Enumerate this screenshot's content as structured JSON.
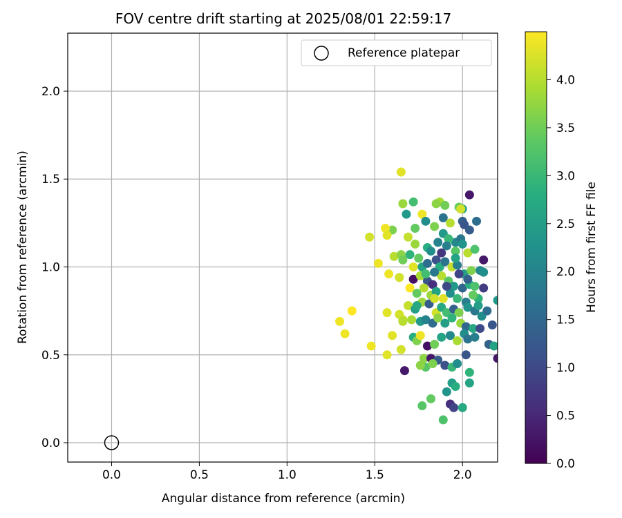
{
  "chart_data": {
    "type": "scatter",
    "title": "FOV centre drift starting at 2025/08/01 22:59:17",
    "xlabel": "Angular distance from reference (arcmin)",
    "ylabel": "Rotation from reference (arcmin)",
    "xlim": [
      -0.25,
      2.2
    ],
    "ylim": [
      -0.11,
      2.33
    ],
    "xticks": [
      "0.0",
      "0.5",
      "1.0",
      "1.5",
      "2.0"
    ],
    "yticks": [
      "0.0",
      "0.5",
      "1.0",
      "1.5",
      "2.0"
    ],
    "grid": true,
    "legend": {
      "position": "top-right",
      "entries": [
        "Reference platepar"
      ]
    },
    "colorbar": {
      "label": "Hours from first FF file",
      "range": [
        0.0,
        4.5
      ],
      "ticks": [
        "0.0",
        "0.5",
        "1.0",
        "1.5",
        "2.0",
        "2.5",
        "3.0",
        "3.5",
        "4.0"
      ],
      "colormap": "viridis"
    },
    "reference_point": {
      "x": 0.0,
      "y": 0.0
    },
    "points": [
      [
        1.65,
        1.54,
        4.3
      ],
      [
        2.04,
        1.41,
        0.3
      ],
      [
        1.72,
        1.37,
        3.1
      ],
      [
        1.66,
        1.36,
        3.8
      ],
      [
        1.87,
        1.37,
        3.9
      ],
      [
        1.85,
        1.36,
        3.7
      ],
      [
        1.9,
        1.35,
        3.5
      ],
      [
        1.98,
        1.34,
        3.4
      ],
      [
        2.0,
        1.33,
        2.6
      ],
      [
        1.68,
        1.3,
        2.4
      ],
      [
        1.77,
        1.3,
        4.4
      ],
      [
        1.99,
        1.33,
        4.2
      ],
      [
        1.79,
        1.26,
        2.2
      ],
      [
        1.89,
        1.28,
        1.7
      ],
      [
        2.0,
        1.26,
        1.4
      ],
      [
        2.01,
        1.24,
        1.2
      ],
      [
        2.04,
        1.21,
        1.3
      ],
      [
        2.08,
        1.26,
        1.6
      ],
      [
        1.93,
        1.25,
        4.0
      ],
      [
        1.6,
        1.21,
        3.6
      ],
      [
        1.56,
        1.22,
        4.4
      ],
      [
        1.57,
        1.18,
        4.3
      ],
      [
        1.73,
        1.22,
        3.4
      ],
      [
        1.84,
        1.23,
        3.6
      ],
      [
        1.89,
        1.19,
        2.4
      ],
      [
        1.96,
        1.14,
        2.1
      ],
      [
        1.99,
        1.16,
        1.8
      ],
      [
        1.92,
        1.16,
        3.0
      ],
      [
        1.47,
        1.17,
        4.2
      ],
      [
        1.52,
        1.02,
        4.4
      ],
      [
        1.61,
        1.06,
        4.0
      ],
      [
        1.65,
        1.07,
        3.7
      ],
      [
        1.69,
        1.17,
        4.1
      ],
      [
        1.73,
        1.13,
        3.8
      ],
      [
        1.8,
        1.11,
        2.8
      ],
      [
        1.82,
        1.09,
        2.2
      ],
      [
        1.86,
        1.14,
        2.0
      ],
      [
        1.91,
        1.12,
        1.9
      ],
      [
        1.96,
        1.09,
        3.3
      ],
      [
        2.03,
        1.08,
        4.0
      ],
      [
        2.0,
        1.13,
        2.3
      ],
      [
        2.07,
        1.1,
        3.2
      ],
      [
        2.12,
        1.04,
        0.3
      ],
      [
        1.66,
        1.04,
        3.5
      ],
      [
        1.7,
        1.07,
        2.9
      ],
      [
        1.75,
        1.05,
        3.4
      ],
      [
        1.77,
        1.0,
        2.6
      ],
      [
        1.8,
        1.02,
        1.6
      ],
      [
        1.85,
        1.04,
        1.1
      ],
      [
        1.87,
        1.0,
        2.8
      ],
      [
        1.9,
        1.03,
        1.7
      ],
      [
        1.94,
        1.0,
        4.1
      ],
      [
        1.97,
        1.01,
        1.9
      ],
      [
        2.01,
        0.96,
        2.5
      ],
      [
        2.05,
        0.98,
        3.6
      ],
      [
        2.1,
        0.98,
        2.1
      ],
      [
        1.58,
        0.96,
        4.4
      ],
      [
        1.64,
        0.94,
        4.2
      ],
      [
        1.72,
        0.93,
        0.2
      ],
      [
        1.76,
        0.95,
        3.9
      ],
      [
        1.8,
        0.92,
        1.2
      ],
      [
        1.83,
        0.9,
        0.6
      ],
      [
        1.88,
        0.95,
        4.0
      ],
      [
        1.92,
        0.92,
        3.3
      ],
      [
        1.95,
        0.89,
        2.4
      ],
      [
        2.0,
        0.88,
        1.5
      ],
      [
        2.04,
        0.9,
        2.8
      ],
      [
        2.07,
        0.89,
        3.2
      ],
      [
        2.12,
        0.88,
        0.8
      ],
      [
        1.7,
        0.88,
        4.5
      ],
      [
        1.74,
        0.85,
        3.4
      ],
      [
        1.78,
        0.88,
        4.0
      ],
      [
        1.82,
        0.84,
        3.8
      ],
      [
        1.85,
        0.86,
        2.6
      ],
      [
        1.89,
        0.82,
        4.3
      ],
      [
        1.93,
        0.85,
        2.2
      ],
      [
        1.97,
        0.82,
        3.0
      ],
      [
        2.02,
        0.8,
        1.9
      ],
      [
        2.09,
        0.82,
        2.9
      ],
      [
        2.2,
        0.81,
        2.4
      ],
      [
        1.69,
        0.78,
        4.1
      ],
      [
        1.73,
        0.76,
        2.5
      ],
      [
        1.77,
        0.8,
        3.8
      ],
      [
        1.81,
        0.79,
        1.3
      ],
      [
        1.85,
        0.74,
        4.2
      ],
      [
        1.88,
        0.77,
        2.7
      ],
      [
        1.91,
        0.74,
        3.1
      ],
      [
        1.95,
        0.76,
        1.4
      ],
      [
        1.98,
        0.74,
        3.6
      ],
      [
        2.03,
        0.77,
        2.3
      ],
      [
        2.07,
        0.75,
        1.8
      ],
      [
        2.11,
        0.72,
        2.2
      ],
      [
        2.14,
        0.75,
        1.6
      ],
      [
        1.3,
        0.69,
        4.4
      ],
      [
        1.37,
        0.75,
        4.5
      ],
      [
        1.33,
        0.62,
        4.4
      ],
      [
        1.48,
        0.55,
        4.4
      ],
      [
        1.57,
        0.74,
        4.3
      ],
      [
        1.64,
        0.73,
        4.2
      ],
      [
        1.66,
        0.7,
        4.1
      ],
      [
        1.71,
        0.7,
        3.9
      ],
      [
        1.76,
        0.69,
        2.4
      ],
      [
        1.79,
        0.7,
        2.0
      ],
      [
        1.83,
        0.68,
        1.6
      ],
      [
        1.86,
        0.71,
        3.7
      ],
      [
        1.9,
        0.68,
        2.5
      ],
      [
        1.94,
        0.71,
        2.9
      ],
      [
        1.99,
        0.68,
        3.8
      ],
      [
        2.02,
        0.66,
        1.5
      ],
      [
        2.06,
        0.65,
        2.7
      ],
      [
        2.1,
        0.65,
        1.0
      ],
      [
        2.17,
        0.67,
        1.2
      ],
      [
        1.57,
        0.5,
        4.3
      ],
      [
        1.65,
        0.53,
        4.2
      ],
      [
        1.67,
        0.41,
        0.3
      ],
      [
        1.72,
        0.6,
        2.8
      ],
      [
        1.74,
        0.58,
        3.6
      ],
      [
        1.76,
        0.61,
        4.4
      ],
      [
        1.8,
        0.55,
        0.2
      ],
      [
        1.84,
        0.56,
        3.5
      ],
      [
        1.88,
        0.6,
        2.6
      ],
      [
        1.93,
        0.61,
        2.1
      ],
      [
        1.97,
        0.58,
        3.9
      ],
      [
        2.01,
        0.62,
        2.2
      ],
      [
        2.03,
        0.59,
        1.7
      ],
      [
        2.07,
        0.6,
        1.9
      ],
      [
        2.15,
        0.56,
        1.4
      ],
      [
        2.18,
        0.55,
        2.6
      ],
      [
        1.78,
        0.48,
        3.7
      ],
      [
        1.82,
        0.48,
        0.3
      ],
      [
        1.86,
        0.47,
        1.3
      ],
      [
        1.9,
        0.44,
        1.1
      ],
      [
        1.94,
        0.43,
        3.0
      ],
      [
        1.97,
        0.45,
        2.2
      ],
      [
        2.02,
        0.5,
        1.2
      ],
      [
        2.04,
        0.4,
        2.9
      ],
      [
        2.2,
        0.48,
        0.3
      ],
      [
        1.79,
        0.43,
        3.3
      ],
      [
        1.83,
        0.45,
        3.6
      ],
      [
        1.94,
        0.34,
        2.5
      ],
      [
        1.96,
        0.32,
        2.8
      ],
      [
        1.91,
        0.29,
        2.3
      ],
      [
        1.93,
        0.22,
        0.6
      ],
      [
        1.95,
        0.2,
        0.9
      ],
      [
        2.0,
        0.2,
        2.7
      ],
      [
        1.77,
        0.21,
        3.3
      ],
      [
        1.82,
        0.25,
        3.4
      ],
      [
        1.89,
        0.13,
        3.2
      ],
      [
        2.04,
        0.34,
        2.6
      ],
      [
        1.6,
        0.61,
        4.3
      ],
      [
        1.66,
        0.69,
        4.0
      ],
      [
        1.74,
        0.78,
        2.7
      ],
      [
        1.76,
        0.44,
        3.7
      ],
      [
        1.84,
        0.82,
        4.2
      ],
      [
        1.91,
        0.89,
        1.0
      ],
      [
        1.96,
        1.05,
        2.6
      ],
      [
        2.03,
        0.93,
        1.4
      ],
      [
        2.06,
        0.84,
        3.4
      ],
      [
        2.09,
        0.78,
        2.5
      ],
      [
        2.12,
        0.97,
        2.2
      ],
      [
        1.88,
        1.08,
        0.7
      ],
      [
        1.84,
        0.97,
        1.8
      ],
      [
        1.79,
        0.96,
        3.1
      ],
      [
        1.98,
        0.96,
        0.9
      ],
      [
        1.72,
        1.0,
        4.3
      ]
    ]
  }
}
